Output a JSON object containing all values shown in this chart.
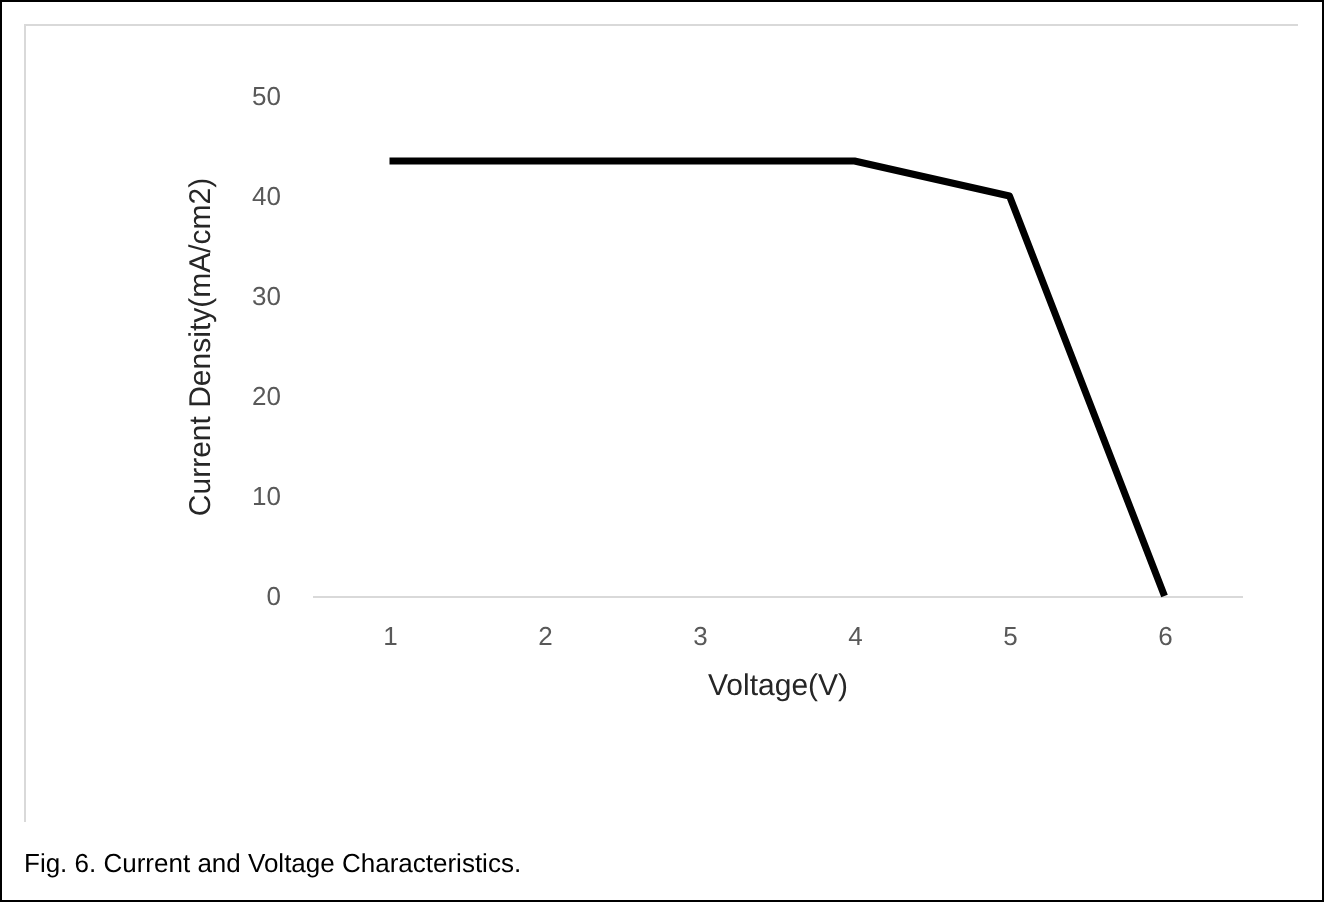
{
  "chart_data": {
    "type": "line",
    "xlabel": "Voltage(V)",
    "ylabel": "Current Density(mA/cm2)",
    "categories": [
      "1",
      "2",
      "3",
      "4",
      "5",
      "6"
    ],
    "series": [
      {
        "color": "#000000",
        "values": [
          43.5,
          43.5,
          43.5,
          43.5,
          40,
          0
        ]
      }
    ],
    "ylim": [
      0,
      50
    ],
    "yticks": [
      0,
      10,
      20,
      30,
      40,
      50
    ],
    "grid": false,
    "legend": false,
    "marker": "none",
    "line_style": "solid",
    "annotations": [
      "Fig. 6. Current and Voltage Characteristics."
    ]
  }
}
